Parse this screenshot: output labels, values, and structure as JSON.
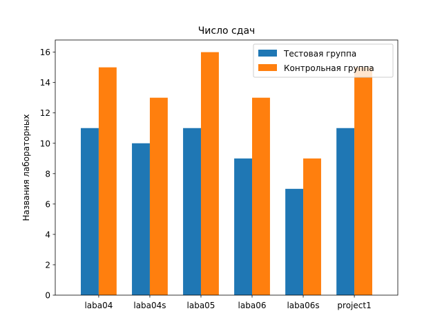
{
  "chart_data": {
    "type": "bar",
    "title": "Число сдач",
    "xlabel": "",
    "ylabel": "Названия лабораторных",
    "categories": [
      "laba04",
      "laba04s",
      "laba05",
      "laba06",
      "laba06s",
      "project1"
    ],
    "series": [
      {
        "name": "Тестовая группа",
        "color": "#1f77b4",
        "values": [
          11,
          10,
          11,
          9,
          7,
          11
        ]
      },
      {
        "name": "Контрольная группа",
        "color": "#ff7f0e",
        "values": [
          15,
          13,
          16,
          13,
          9,
          15
        ]
      }
    ],
    "ylim": [
      0,
      16.8
    ],
    "yticks": [
      "0",
      "2",
      "4",
      "6",
      "8",
      "10",
      "12",
      "14",
      "16"
    ],
    "grid": false,
    "legend_position": "top-right"
  }
}
